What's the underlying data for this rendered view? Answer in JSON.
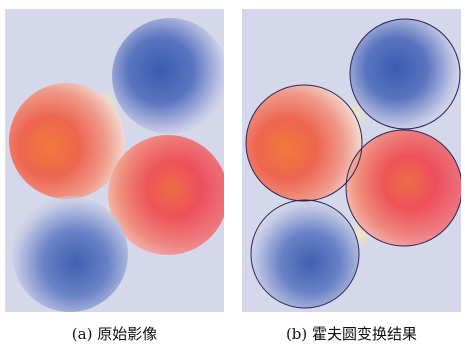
{
  "panel_a": {
    "caption": "(a) 原始影像",
    "background": "#d4d8ea",
    "detected_outline": false
  },
  "panel_b": {
    "caption": "(b) 霍夫圆变换结果",
    "background": "#d4d8ea",
    "detected_outline": true,
    "outline_color": "#2b2358"
  },
  "colors": {
    "warm_center": "#f07a3a",
    "warm_mid": "#ee5a5a",
    "warm_edge": "#e8307a",
    "cool_center": "#3f5fb0",
    "cool_mid": "#6f86c8",
    "cool_edge": "#c9cdea",
    "glow": "#f4e8b8"
  },
  "circles": [
    {
      "tone": "cool"
    },
    {
      "tone": "warm"
    },
    {
      "tone": "warm"
    },
    {
      "tone": "cool"
    }
  ]
}
